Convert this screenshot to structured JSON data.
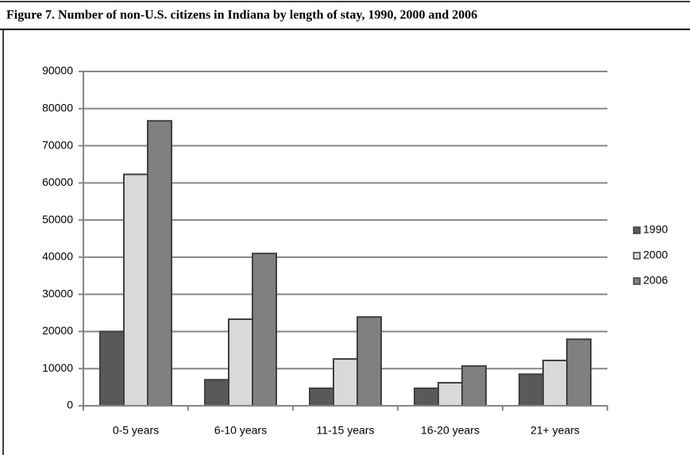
{
  "chart_data": {
    "type": "bar",
    "title": "Figure 7. Number of non-U.S. citizens in Indiana by length of stay, 1990, 2000 and 2006",
    "categories": [
      "0-5 years",
      "6-10 years",
      "11-15 years",
      "16-20 years",
      "21+ years"
    ],
    "series": [
      {
        "name": "1990",
        "color": "#595959",
        "values": [
          20000,
          7000,
          4700,
          4700,
          8500
        ]
      },
      {
        "name": "2000",
        "color": "#d9d9d9",
        "values": [
          62300,
          23300,
          12600,
          6200,
          12200
        ]
      },
      {
        "name": "2006",
        "color": "#808080",
        "values": [
          76700,
          41000,
          23900,
          10700,
          17900
        ]
      }
    ],
    "ylim": [
      0,
      90000
    ],
    "yticks": [
      0,
      10000,
      20000,
      30000,
      40000,
      50000,
      60000,
      70000,
      80000,
      90000
    ],
    "grid": true,
    "legend": "right"
  }
}
